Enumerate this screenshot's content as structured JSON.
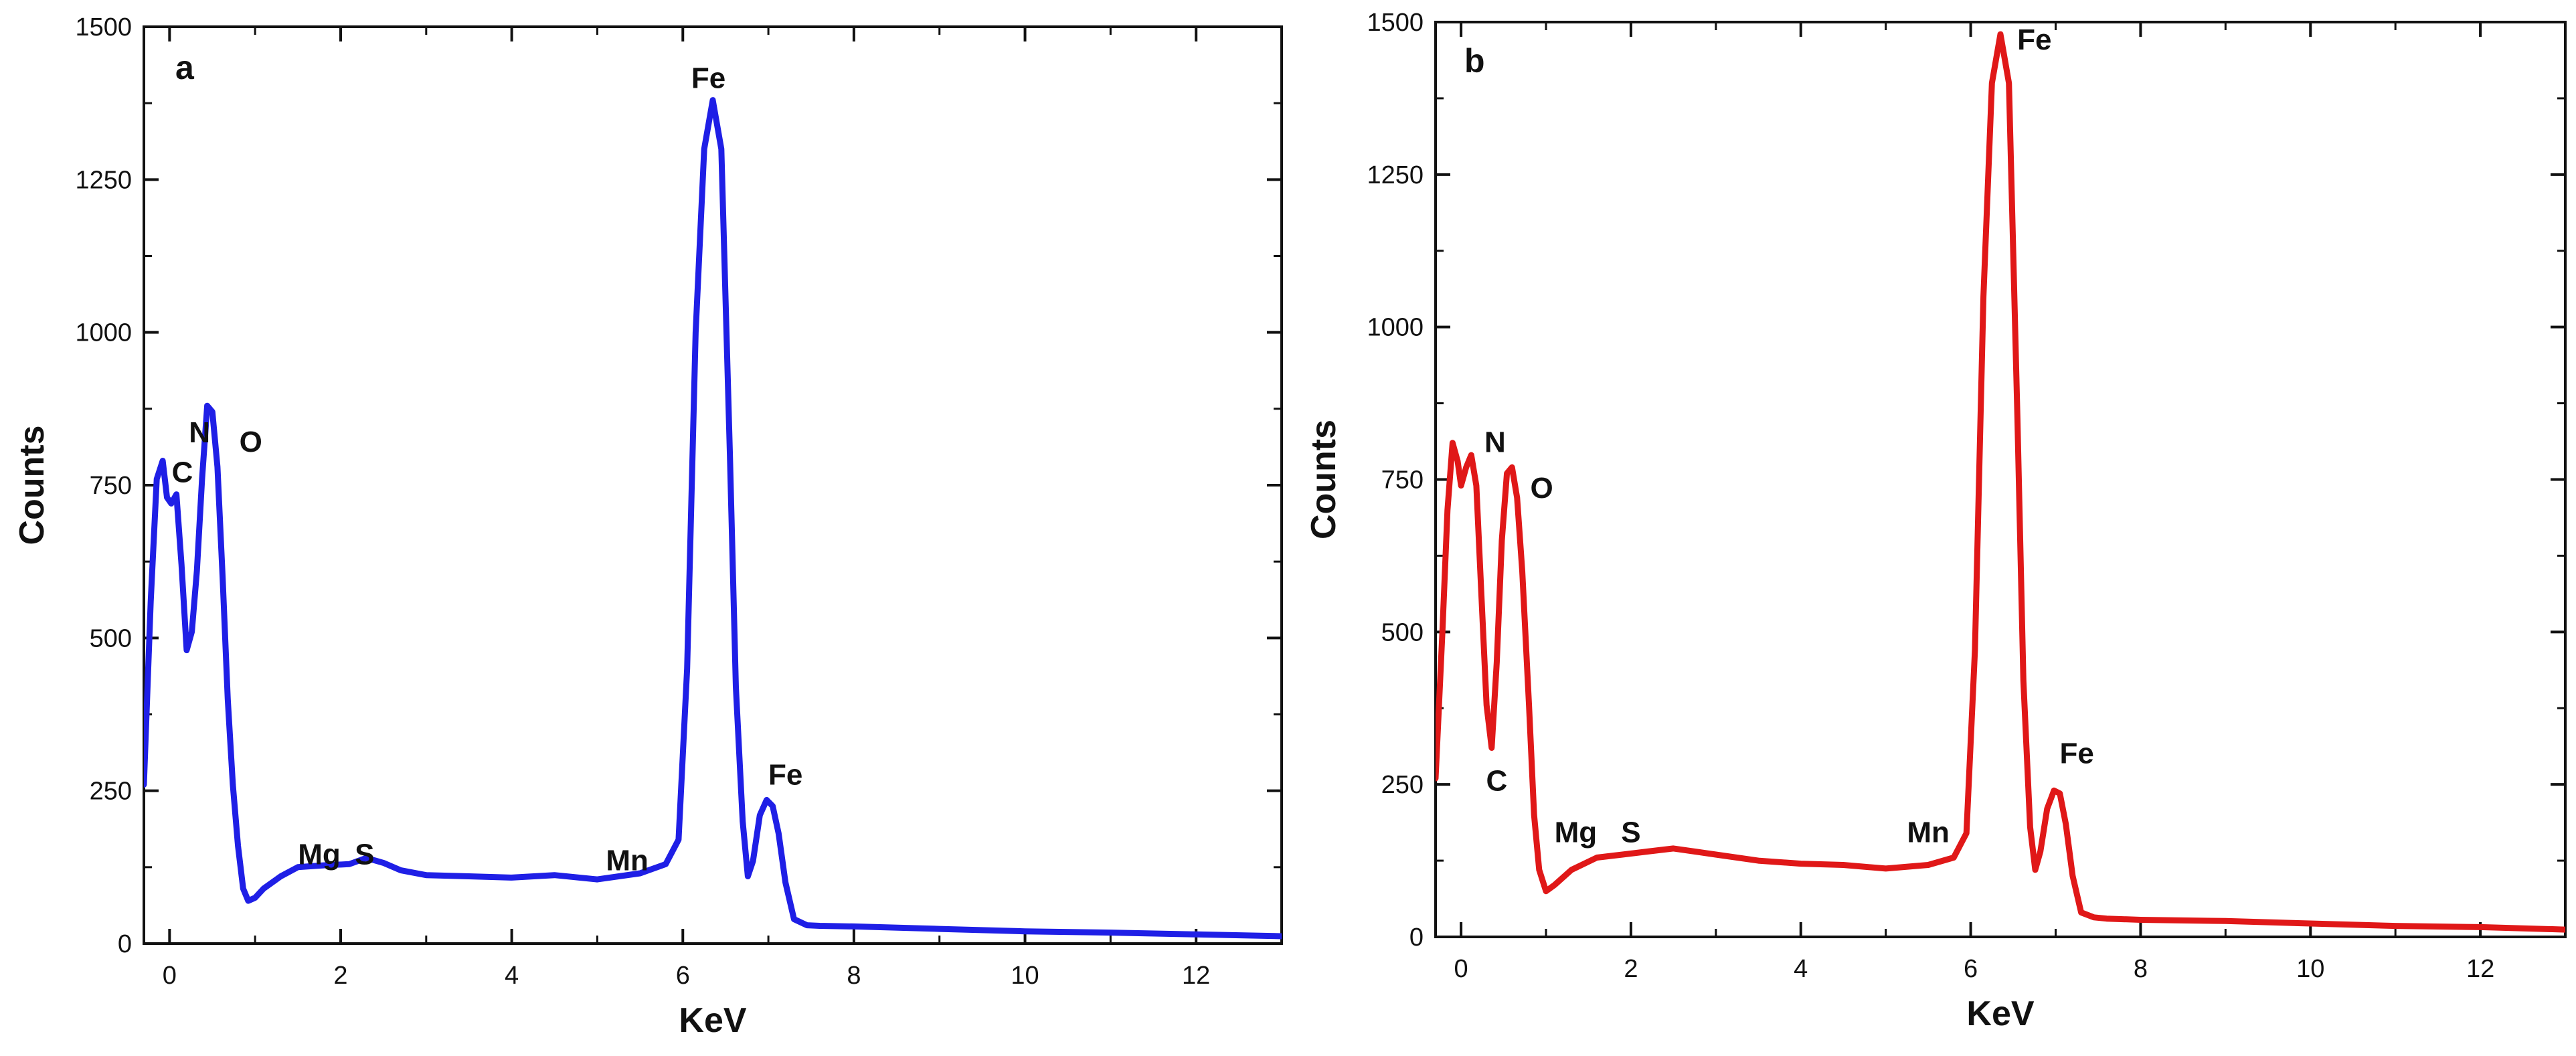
{
  "chart_data": [
    {
      "type": "line",
      "panel_label": "a",
      "xlabel": "KeV",
      "ylabel": "Counts",
      "xlim": [
        -0.3,
        13
      ],
      "ylim": [
        0,
        1500
      ],
      "xticks": [
        0,
        2,
        4,
        6,
        8,
        10,
        12
      ],
      "yticks": [
        0,
        250,
        500,
        750,
        1000,
        1250,
        1500
      ],
      "series_color": "#1f1fe6",
      "series": [
        {
          "name": "spectrum a",
          "x": [
            -0.3,
            -0.22,
            -0.15,
            -0.08,
            -0.03,
            0.02,
            0.08,
            0.14,
            0.2,
            0.26,
            0.32,
            0.38,
            0.44,
            0.5,
            0.56,
            0.62,
            0.68,
            0.74,
            0.8,
            0.86,
            0.92,
            1.0,
            1.1,
            1.3,
            1.5,
            1.8,
            2.1,
            2.3,
            2.5,
            2.7,
            3.0,
            3.5,
            4.0,
            4.5,
            5.0,
            5.5,
            5.8,
            5.95,
            6.05,
            6.15,
            6.25,
            6.35,
            6.45,
            6.55,
            6.62,
            6.7,
            6.76,
            6.82,
            6.9,
            6.98,
            7.05,
            7.12,
            7.2,
            7.3,
            7.45,
            7.6,
            8.0,
            9.0,
            10.0,
            11.0,
            12.0,
            13.0
          ],
          "y": [
            260,
            560,
            760,
            790,
            730,
            720,
            735,
            620,
            480,
            510,
            610,
            760,
            880,
            870,
            780,
            600,
            400,
            260,
            160,
            90,
            70,
            75,
            90,
            110,
            125,
            128,
            130,
            140,
            132,
            120,
            112,
            110,
            108,
            112,
            105,
            115,
            130,
            170,
            450,
            1000,
            1300,
            1380,
            1300,
            800,
            420,
            200,
            110,
            135,
            210,
            235,
            225,
            180,
            100,
            40,
            30,
            29,
            28,
            24,
            20,
            18,
            15,
            12
          ]
        }
      ],
      "annotations": [
        {
          "text": "C",
          "x": 0.15,
          "y": 755
        },
        {
          "text": "N",
          "x": 0.35,
          "y": 820
        },
        {
          "text": "O",
          "x": 0.95,
          "y": 805
        },
        {
          "text": "Mg",
          "x": 1.75,
          "y": 130
        },
        {
          "text": "S",
          "x": 2.28,
          "y": 130
        },
        {
          "text": "Mn",
          "x": 5.35,
          "y": 120
        },
        {
          "text": "Fe",
          "x": 6.3,
          "y": 1400
        },
        {
          "text": "Fe",
          "x": 7.2,
          "y": 260
        }
      ]
    },
    {
      "type": "line",
      "panel_label": "b",
      "xlabel": "KeV",
      "ylabel": "Counts",
      "xlim": [
        -0.3,
        13
      ],
      "ylim": [
        0,
        1500
      ],
      "xticks": [
        0,
        2,
        4,
        6,
        8,
        10,
        12
      ],
      "yticks": [
        0,
        250,
        500,
        750,
        1000,
        1250,
        1500
      ],
      "series_color": "#e01818",
      "series": [
        {
          "name": "spectrum b",
          "x": [
            -0.3,
            -0.22,
            -0.16,
            -0.1,
            -0.04,
            0.0,
            0.06,
            0.12,
            0.18,
            0.24,
            0.3,
            0.36,
            0.42,
            0.48,
            0.54,
            0.6,
            0.66,
            0.72,
            0.8,
            0.86,
            0.92,
            1.0,
            1.1,
            1.3,
            1.6,
            1.9,
            2.2,
            2.5,
            3.0,
            3.5,
            4.0,
            4.5,
            5.0,
            5.5,
            5.8,
            5.95,
            6.05,
            6.15,
            6.25,
            6.35,
            6.45,
            6.55,
            6.62,
            6.7,
            6.76,
            6.82,
            6.9,
            6.98,
            7.05,
            7.12,
            7.2,
            7.3,
            7.45,
            7.6,
            8.0,
            9.0,
            10.0,
            11.0,
            12.0,
            13.0
          ],
          "y": [
            260,
            500,
            700,
            810,
            780,
            740,
            770,
            790,
            740,
            560,
            380,
            310,
            450,
            650,
            760,
            770,
            720,
            600,
            380,
            200,
            110,
            75,
            85,
            110,
            130,
            135,
            140,
            145,
            135,
            125,
            120,
            118,
            112,
            118,
            130,
            170,
            470,
            1050,
            1400,
            1480,
            1400,
            850,
            420,
            180,
            110,
            140,
            210,
            240,
            235,
            185,
            100,
            40,
            32,
            30,
            28,
            26,
            22,
            18,
            16,
            12
          ]
        }
      ],
      "annotations": [
        {
          "text": "N",
          "x": 0.4,
          "y": 795
        },
        {
          "text": "O",
          "x": 0.95,
          "y": 720
        },
        {
          "text": "C",
          "x": 0.42,
          "y": 240
        },
        {
          "text": "Mg",
          "x": 1.35,
          "y": 155
        },
        {
          "text": "S",
          "x": 2.0,
          "y": 155
        },
        {
          "text": "Mn",
          "x": 5.5,
          "y": 155
        },
        {
          "text": "Fe",
          "x": 6.75,
          "y": 1455
        },
        {
          "text": "Fe",
          "x": 7.25,
          "y": 285
        }
      ]
    }
  ]
}
